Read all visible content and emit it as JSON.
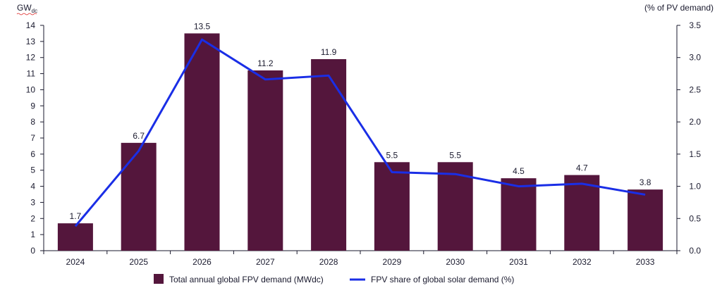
{
  "chart_data": {
    "type": "bar+line",
    "categories": [
      "2024",
      "2025",
      "2026",
      "2027",
      "2028",
      "2029",
      "2030",
      "2031",
      "2032",
      "2033"
    ],
    "series": [
      {
        "name": "Total annual global FPV demand (MWdc)",
        "kind": "bar",
        "axis": "left",
        "color": "#54163c",
        "values": [
          1.7,
          6.7,
          13.5,
          11.2,
          11.9,
          5.5,
          5.5,
          4.5,
          4.7,
          3.8
        ]
      },
      {
        "name": "FPV share of global solar demand (%)",
        "kind": "line",
        "axis": "right",
        "color": "#1a2ee6",
        "values": [
          0.38,
          1.55,
          3.28,
          2.66,
          2.72,
          1.22,
          1.19,
          1.0,
          1.04,
          0.87
        ]
      }
    ],
    "data_labels": [
      "1.7",
      "6.7",
      "13.5",
      "11.2",
      "11.9",
      "5.5",
      "5.5",
      "4.5",
      "4.7",
      "3.8"
    ],
    "left_axis": {
      "unit_label": "GWdc",
      "range": [
        0,
        14
      ],
      "ticks": [
        "0",
        "1",
        "2",
        "3",
        "4",
        "5",
        "6",
        "7",
        "8",
        "9",
        "10",
        "11",
        "12",
        "13",
        "14"
      ]
    },
    "right_axis": {
      "unit_label": "(% of PV demand)",
      "range": [
        0,
        3.5
      ],
      "ticks": [
        "0.0",
        "0.5",
        "1.0",
        "1.5",
        "2.0",
        "2.5",
        "3.0",
        "3.5"
      ]
    },
    "legend_position": "bottom-center",
    "grid": false
  },
  "colors": {
    "bar": "#54163c",
    "line": "#1a2ee6",
    "axis": "#1a1a2e"
  }
}
